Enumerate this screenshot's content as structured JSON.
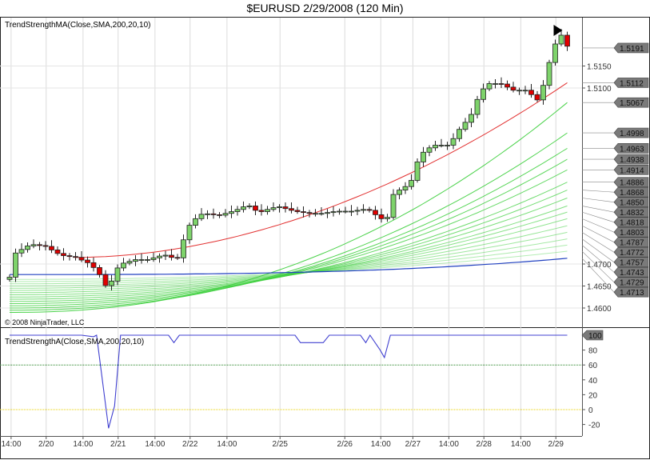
{
  "title": "$EURUSD  2/29/2008 (120 Min)",
  "upper_indicator_label": "TrendStrengthMA(Close,SMA,200,20,10)",
  "lower_indicator_label": "TrendStrengthA(Close,SMA,200,20,10)",
  "copyright": "© 2008 NinjaTrader, LLC",
  "colors": {
    "up": "#7ed36b",
    "down": "#e00000",
    "sma": "#e23030",
    "base": "#2040c0",
    "bands": "#40d040",
    "strength": "#4040d0",
    "level60": "#208020",
    "level0": "#e8d000"
  },
  "chart_data": [
    {
      "type": "candlestick",
      "title": "$EURUSD  2/29/2008 (120 Min)",
      "closes": [
        1.467,
        1.4725,
        1.4733,
        1.4741,
        1.4744,
        1.4742,
        1.474,
        1.4732,
        1.4724,
        1.4719,
        1.4717,
        1.4715,
        1.4709,
        1.4703,
        1.4692,
        1.4676,
        1.4651,
        1.4661,
        1.4691,
        1.4702,
        1.4706,
        1.471,
        1.471,
        1.471,
        1.4714,
        1.4718,
        1.472,
        1.4715,
        1.4714,
        1.4755,
        1.4788,
        1.4803,
        1.4813,
        1.4814,
        1.4812,
        1.4811,
        1.4815,
        1.4819,
        1.4824,
        1.483,
        1.4832,
        1.4822,
        1.4819,
        1.4824,
        1.4828,
        1.483,
        1.4826,
        1.4822,
        1.4819,
        1.4817,
        1.4815,
        1.4815,
        1.4815,
        1.4817,
        1.4819,
        1.482,
        1.482,
        1.482,
        1.4822,
        1.4824,
        1.4822,
        1.4812,
        1.4803,
        1.4806,
        1.4858,
        1.4868,
        1.4876,
        1.489,
        1.4932,
        1.4954,
        1.4964,
        1.497,
        1.497,
        1.497,
        1.4985,
        1.5006,
        1.5022,
        1.504,
        1.5074,
        1.5098,
        1.511,
        1.511,
        1.5109,
        1.5102,
        1.5095,
        1.5095,
        1.5095,
        1.5085,
        1.5073,
        1.5106,
        1.5158,
        1.52,
        1.522,
        1.5195
      ],
      "ylim": [
        1.457,
        1.527
      ],
      "y_ticks": [
        "1.4600",
        "1.4650",
        "1.4700",
        "1.5100",
        "1.5150"
      ],
      "price_markers": [
        "1.5191",
        "1.5112",
        "1.5067",
        "1.4998",
        "1.4963",
        "1.4938",
        "1.4914",
        "1.4886",
        "1.4868",
        "1.4850",
        "1.4832",
        "1.4818",
        "1.4803",
        "1.4787",
        "1.4772",
        "1.4757",
        "1.4743",
        "1.4729",
        "1.4713"
      ],
      "sma_end": 1.5112,
      "base_end": 1.4713
    },
    {
      "type": "line",
      "name": "TrendStrengthA",
      "points": [
        [
          0,
          100
        ],
        [
          12,
          100
        ],
        [
          14,
          98
        ],
        [
          14.5,
          100
        ],
        [
          16.5,
          -25
        ],
        [
          17.5,
          5
        ],
        [
          18.5,
          100
        ],
        [
          26.5,
          100
        ],
        [
          27.4,
          90
        ],
        [
          28.3,
          100
        ],
        [
          47.6,
          100
        ],
        [
          48.5,
          90
        ],
        [
          52.3,
          90
        ],
        [
          53.3,
          100
        ],
        [
          58.5,
          100
        ],
        [
          59.4,
          90
        ],
        [
          60.1,
          100
        ],
        [
          61.8,
          80
        ],
        [
          62.5,
          70
        ],
        [
          63.5,
          100
        ],
        [
          93,
          100
        ]
      ],
      "ylim": [
        -30,
        105
      ],
      "y_ticks": [
        "100",
        "80",
        "60",
        "40",
        "20",
        "0",
        "-20"
      ],
      "levels": [
        60,
        0
      ]
    }
  ],
  "x_axis": [
    {
      "bar": 0.25,
      "label": "14:00"
    },
    {
      "bar": 6.1,
      "label": "2/20"
    },
    {
      "bar": 12.25,
      "label": "14:00"
    },
    {
      "bar": 18.1,
      "label": "2/21"
    },
    {
      "bar": 24.25,
      "label": "14:00"
    },
    {
      "bar": 30.1,
      "label": "2/22"
    },
    {
      "bar": 36.25,
      "label": "14:00"
    },
    {
      "bar": 45.1,
      "label": "2/25"
    },
    {
      "bar": 55.9,
      "label": "2/26"
    },
    {
      "bar": 61.9,
      "label": "14:00"
    },
    {
      "bar": 67.25,
      "label": "2/27"
    },
    {
      "bar": 73.25,
      "label": "14:00"
    },
    {
      "bar": 79.1,
      "label": "2/28"
    },
    {
      "bar": 85.25,
      "label": "14:00"
    },
    {
      "bar": 91.1,
      "label": "2/29"
    }
  ]
}
